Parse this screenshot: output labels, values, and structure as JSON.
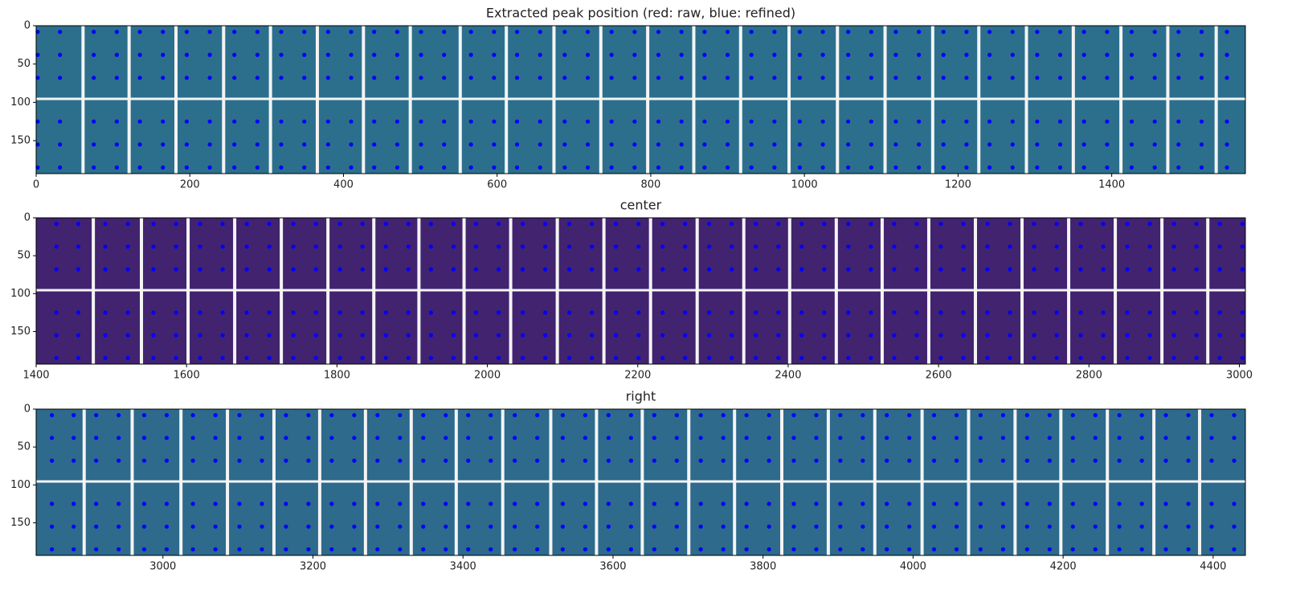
{
  "chart_data": [
    {
      "type": "image",
      "title": "Extracted peak position (red: raw, blue: refined)",
      "image_color": "#2c6f8d",
      "xlim": [
        0,
        1574
      ],
      "ylim": [
        193,
        0
      ],
      "xticks": [
        0,
        200,
        400,
        600,
        800,
        1000,
        1200,
        1400
      ],
      "yticks": [
        0,
        50,
        100,
        150
      ],
      "module_gaps": [
        61,
        121,
        182,
        244,
        305,
        366,
        426,
        487,
        552,
        612,
        674,
        735,
        796,
        856,
        917,
        980,
        1043,
        1105,
        1167,
        1227,
        1289,
        1350,
        1412,
        1473,
        1536
      ],
      "row_gap": 96,
      "peak_color": "#0000ff",
      "peaks_x": [
        2,
        31,
        75,
        105,
        135,
        165,
        196,
        226,
        258,
        288,
        319,
        349,
        380,
        410,
        440,
        470,
        501,
        531,
        566,
        596,
        626,
        656,
        688,
        718,
        749,
        779,
        810,
        840,
        870,
        900,
        931,
        961,
        994,
        1024,
        1057,
        1087,
        1119,
        1149,
        1181,
        1211,
        1241,
        1271,
        1303,
        1333,
        1364,
        1394,
        1426,
        1456,
        1487,
        1517,
        1550
      ],
      "peaks_y": [
        8,
        38,
        68,
        125,
        155,
        185
      ]
    },
    {
      "type": "image",
      "title": "center",
      "image_color": "#41236f",
      "xlim": [
        1400,
        3008
      ],
      "ylim": [
        193,
        0
      ],
      "xticks": [
        1400,
        1600,
        1800,
        2000,
        2200,
        2400,
        2600,
        2800,
        3000
      ],
      "yticks": [
        0,
        50,
        100,
        150
      ],
      "module_gaps": [
        1476,
        1540,
        1602,
        1664,
        1726,
        1788,
        1849,
        1909,
        1969,
        2031,
        2093,
        2155,
        2217,
        2279,
        2341,
        2402,
        2464,
        2525,
        2587,
        2649,
        2711,
        2773,
        2835,
        2897,
        2958
      ],
      "row_gap": 96,
      "peak_color": "#0000ff",
      "peaks_x": [
        1427,
        1456,
        1492,
        1522,
        1556,
        1586,
        1618,
        1648,
        1680,
        1710,
        1742,
        1772,
        1804,
        1834,
        1865,
        1895,
        1925,
        1955,
        1985,
        2015,
        2047,
        2077,
        2109,
        2139,
        2171,
        2201,
        2233,
        2263,
        2295,
        2325,
        2357,
        2387,
        2418,
        2448,
        2480,
        2510,
        2541,
        2571,
        2603,
        2633,
        2665,
        2695,
        2727,
        2757,
        2789,
        2819,
        2851,
        2881,
        2913,
        2943,
        2974,
        3004
      ],
      "peaks_y": [
        8,
        38,
        68,
        125,
        155,
        185
      ]
    },
    {
      "type": "image",
      "title": "right",
      "image_color": "#2d6a8c",
      "xlim": [
        2831,
        4443
      ],
      "ylim": [
        193,
        0
      ],
      "xticks": [
        3000,
        3200,
        3400,
        3600,
        3800,
        4000,
        4200,
        4400
      ],
      "yticks": [
        0,
        50,
        100,
        150
      ],
      "module_gaps": [
        2895,
        2959,
        3024,
        3086,
        3148,
        3209,
        3270,
        3331,
        3391,
        3453,
        3517,
        3578,
        3639,
        3701,
        3762,
        3825,
        3887,
        3949,
        4012,
        4074,
        4136,
        4197,
        4259,
        4321,
        4382
      ],
      "row_gap": 96,
      "peak_color": "#0000ff",
      "peaks_x": [
        2852,
        2881,
        2911,
        2941,
        2975,
        3005,
        3040,
        3070,
        3102,
        3132,
        3164,
        3194,
        3225,
        3255,
        3286,
        3316,
        3347,
        3377,
        3407,
        3437,
        3469,
        3499,
        3533,
        3563,
        3594,
        3624,
        3655,
        3685,
        3717,
        3747,
        3778,
        3808,
        3841,
        3871,
        3903,
        3933,
        3965,
        3995,
        4028,
        4058,
        4090,
        4120,
        4152,
        4182,
        4213,
        4243,
        4275,
        4305,
        4337,
        4367,
        4398,
        4428
      ],
      "peaks_y": [
        8,
        38,
        68,
        125,
        155,
        185
      ]
    }
  ]
}
